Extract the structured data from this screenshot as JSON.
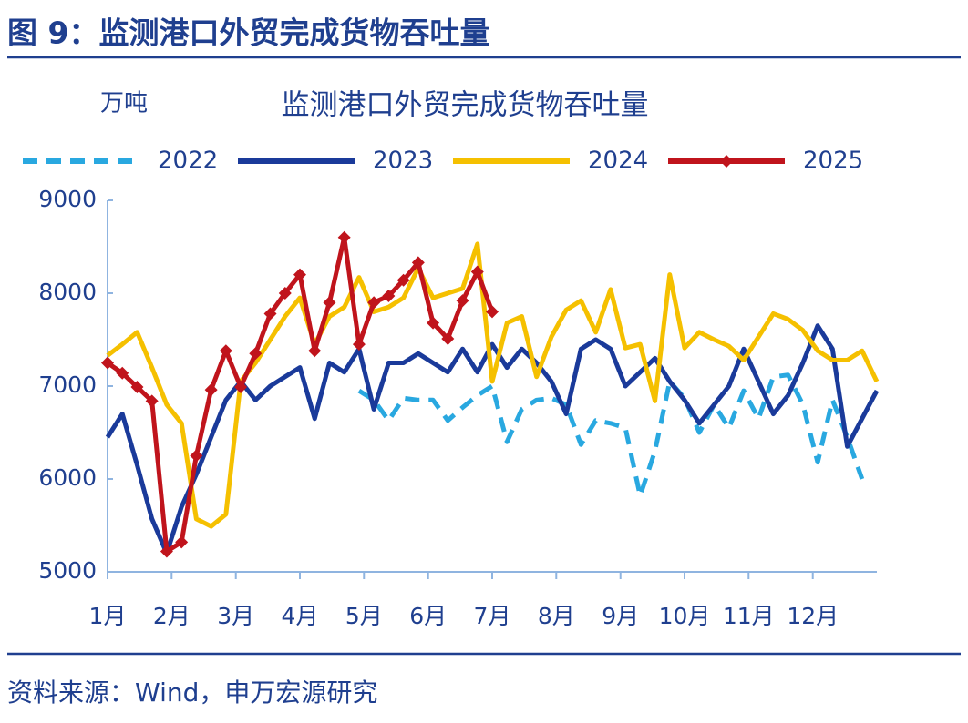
{
  "header": {
    "title": "图 9：监测港口外贸完成货物吞吐量"
  },
  "chart_data": {
    "type": "line",
    "title": "监测港口外贸完成货物吞吐量",
    "y_unit": "万吨",
    "x": [
      0,
      1,
      2,
      3,
      4,
      5,
      6,
      7,
      8,
      9,
      10,
      11,
      12,
      13,
      14,
      15,
      16,
      17,
      18,
      19,
      20,
      21,
      22,
      23,
      24,
      25,
      26,
      27,
      28,
      29,
      30,
      31,
      32,
      33,
      34,
      35,
      36,
      37,
      38,
      39,
      40,
      41,
      42,
      43,
      44,
      45,
      46,
      47,
      48,
      49,
      50,
      51,
      52
    ],
    "xlim": [
      0,
      52
    ],
    "xticks": [
      {
        "value": 0,
        "label": "1月"
      },
      {
        "value": 4.33,
        "label": "2月"
      },
      {
        "value": 8.67,
        "label": "3月"
      },
      {
        "value": 13,
        "label": "4月"
      },
      {
        "value": 17.33,
        "label": "5月"
      },
      {
        "value": 21.67,
        "label": "6月"
      },
      {
        "value": 26,
        "label": "7月"
      },
      {
        "value": 30.33,
        "label": "8月"
      },
      {
        "value": 34.67,
        "label": "9月"
      },
      {
        "value": 39,
        "label": "10月"
      },
      {
        "value": 43.33,
        "label": "11月"
      },
      {
        "value": 47.67,
        "label": "12月"
      }
    ],
    "ylim": [
      5000,
      9000
    ],
    "yticks": [
      5000,
      6000,
      7000,
      8000,
      9000
    ],
    "series": [
      {
        "name": "2022",
        "color": "#29a8e0",
        "dash": true,
        "values": [
          null,
          null,
          null,
          null,
          null,
          null,
          null,
          null,
          null,
          null,
          null,
          null,
          null,
          null,
          null,
          null,
          null,
          6950,
          6850,
          6630,
          6870,
          6850,
          6850,
          6630,
          6770,
          6900,
          7000,
          6400,
          6750,
          6850,
          6870,
          6800,
          6370,
          6630,
          6600,
          6550,
          5820,
          6300,
          7050,
          6870,
          6500,
          6800,
          6550,
          6950,
          6650,
          7100,
          7120,
          6800,
          6180,
          6850,
          6450,
          6000,
          null
        ]
      },
      {
        "name": "2023",
        "color": "#1a3a9a",
        "values": [
          6450,
          6700,
          6150,
          5570,
          5200,
          5700,
          6050,
          6450,
          6850,
          7050,
          6850,
          7000,
          7100,
          7200,
          6650,
          7250,
          7150,
          7400,
          6750,
          7250,
          7250,
          7350,
          7250,
          7150,
          7400,
          7150,
          7450,
          7200,
          7400,
          7250,
          7050,
          6700,
          7400,
          7500,
          7400,
          7000,
          7150,
          7300,
          7050,
          6850,
          6600,
          6800,
          7000,
          7400,
          7050,
          6700,
          6900,
          7250,
          7650,
          7400,
          6350,
          6650,
          6950
        ]
      },
      {
        "name": "2024",
        "color": "#f5c000",
        "values": [
          7330,
          7450,
          7580,
          7200,
          6800,
          6600,
          5570,
          5490,
          5620,
          7050,
          7250,
          7500,
          7750,
          7950,
          7450,
          7750,
          7850,
          8170,
          7800,
          7850,
          7950,
          8270,
          7950,
          8000,
          8050,
          8530,
          7050,
          7680,
          7750,
          7100,
          7530,
          7820,
          7920,
          7580,
          8040,
          7410,
          7450,
          6840,
          8200,
          7410,
          7580,
          7500,
          7430,
          7280,
          7530,
          7780,
          7720,
          7600,
          7380,
          7280,
          7280,
          7380,
          7050
        ]
      },
      {
        "name": "2025",
        "color": "#c0141c",
        "markers": true,
        "values": [
          7250,
          7140,
          6990,
          6840,
          5220,
          5320,
          6250,
          6960,
          7380,
          6990,
          7350,
          7780,
          8000,
          8200,
          7380,
          7900,
          8600,
          7450,
          7900,
          7970,
          8140,
          8330,
          7680,
          7510,
          7920,
          8230,
          7800,
          null,
          null,
          null,
          null,
          null,
          null,
          null,
          null,
          null,
          null,
          null,
          null,
          null,
          null,
          null,
          null,
          null,
          null,
          null,
          null,
          null,
          null,
          null,
          null,
          null,
          null
        ]
      }
    ]
  },
  "footer": {
    "source": "资料来源：Wind，申万宏源研究"
  }
}
